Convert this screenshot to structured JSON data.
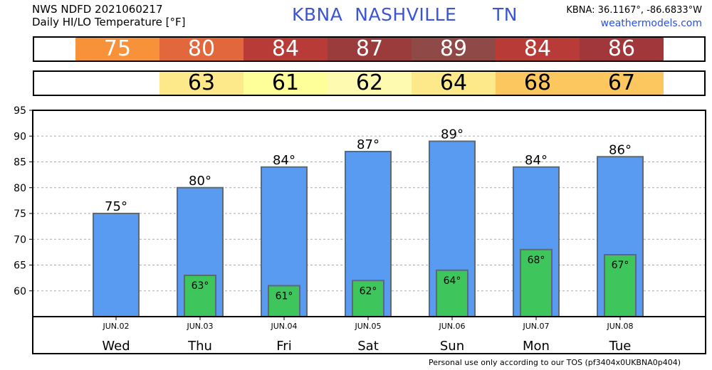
{
  "header": {
    "line1": "NWS NDFD 2021060217",
    "line2": "Daily HI/LO Temperature [°F]",
    "station": "KBNA  NASHVILLE      TN",
    "coords": "KBNA: 36.1167°, -86.6833°W",
    "site": "weathermodels.com"
  },
  "hi_strip": {
    "values": [
      "75",
      "80",
      "84",
      "87",
      "89",
      "84",
      "86"
    ],
    "colors": [
      "#f7913a",
      "#e2673c",
      "#b93b37",
      "#9b3c3c",
      "#8f4a48",
      "#b93b37",
      "#a1373a"
    ]
  },
  "lo_strip": {
    "values": [
      "63",
      "61",
      "62",
      "64",
      "68",
      "67"
    ],
    "colors": [
      "#fde98a",
      "#ffff99",
      "#fefbb0",
      "#fde98a",
      "#fcc75e",
      "#fcc75e"
    ]
  },
  "chart_data": {
    "type": "bar",
    "categories": [
      "Wed",
      "Thu",
      "Fri",
      "Sat",
      "Sun",
      "Mon",
      "Tue"
    ],
    "dates": [
      "JUN.02",
      "JUN.03",
      "JUN.04",
      "JUN.05",
      "JUN.06",
      "JUN.07",
      "JUN.08"
    ],
    "series": [
      {
        "values": [
          75,
          80,
          84,
          87,
          89,
          84,
          86
        ],
        "color": "#5a9bf2",
        "labels": [
          "75°",
          "80°",
          "84°",
          "87°",
          "89°",
          "84°",
          "86°"
        ]
      },
      {
        "values": [
          null,
          63,
          61,
          62,
          64,
          68,
          67
        ],
        "color": "#3ec65c",
        "labels": [
          "",
          "63°",
          "61°",
          "62°",
          "64°",
          "68°",
          "67°"
        ]
      }
    ],
    "ylim": [
      55,
      95
    ],
    "yticks": [
      60,
      65,
      70,
      75,
      80,
      85,
      90,
      95
    ],
    "grid": true
  },
  "footer": "Personal use only according to our TOS (pf3404x0UKBNA0p404)"
}
